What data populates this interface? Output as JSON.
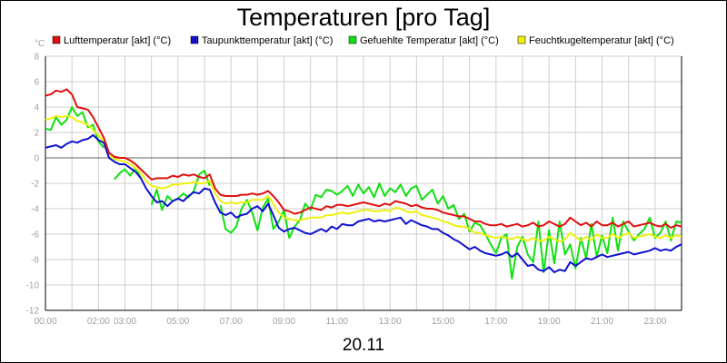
{
  "chart_data": {
    "type": "line",
    "title": "Temperaturen [pro Tag]",
    "y_unit": "°C",
    "xlabel": "20.11",
    "ylim": [
      -12,
      8
    ],
    "xlim": [
      0,
      24
    ],
    "yticks": [
      8,
      6,
      4,
      2,
      0,
      -2,
      -4,
      -6,
      -8,
      -10,
      -12
    ],
    "xticks": [
      {
        "h": 0,
        "label": "00:00"
      },
      {
        "h": 2,
        "label": "02:00"
      },
      {
        "h": 3,
        "label": "03:00"
      },
      {
        "h": 5,
        "label": "05:00"
      },
      {
        "h": 7,
        "label": "07:00"
      },
      {
        "h": 9,
        "label": "09:00"
      },
      {
        "h": 11,
        "label": "11:00"
      },
      {
        "h": 13,
        "label": "13:00"
      },
      {
        "h": 15,
        "label": "15:00"
      },
      {
        "h": 17,
        "label": "17:00"
      },
      {
        "h": 19,
        "label": "19:00"
      },
      {
        "h": 21,
        "label": "21:00"
      },
      {
        "h": 23,
        "label": "23:00"
      }
    ],
    "grid": true,
    "legend_position": "top",
    "series": [
      {
        "name": "Lufttemperatur [akt] (°C)",
        "color": "#e01010",
        "x": [
          0,
          0.2,
          0.4,
          0.6,
          0.8,
          1,
          1.2,
          1.4,
          1.6,
          1.8,
          2,
          2.2,
          2.4,
          2.6,
          2.8,
          3,
          3.2,
          3.4,
          3.6,
          3.8,
          4,
          4.2,
          4.4,
          4.6,
          4.8,
          5,
          5.2,
          5.4,
          5.6,
          5.8,
          6,
          6.2,
          6.4,
          6.6,
          6.8,
          7,
          7.2,
          7.4,
          7.6,
          7.8,
          8,
          8.2,
          8.4,
          8.6,
          8.8,
          9,
          9.2,
          9.4,
          9.6,
          9.8,
          10,
          10.2,
          10.4,
          10.6,
          10.8,
          11,
          11.2,
          11.4,
          11.6,
          11.8,
          12,
          12.2,
          12.4,
          12.6,
          12.8,
          13,
          13.2,
          13.4,
          13.6,
          13.8,
          14,
          14.2,
          14.4,
          14.6,
          14.8,
          15,
          15.2,
          15.4,
          15.6,
          15.8,
          16,
          16.2,
          16.4,
          16.6,
          16.8,
          17,
          17.2,
          17.4,
          17.6,
          17.8,
          18,
          18.2,
          18.4,
          18.6,
          18.8,
          19,
          19.2,
          19.4,
          19.6,
          19.8,
          20,
          20.2,
          20.4,
          20.6,
          20.8,
          21,
          21.2,
          21.4,
          21.6,
          21.8,
          22,
          22.2,
          22.4,
          22.6,
          22.8,
          23,
          23.2,
          23.4,
          23.6,
          23.8,
          24
        ],
        "y": [
          4.9,
          5.0,
          5.3,
          5.2,
          5.4,
          5.0,
          4.0,
          3.9,
          3.8,
          3.2,
          2.4,
          1.6,
          0.4,
          0.1,
          0.0,
          0.0,
          -0.2,
          -0.5,
          -0.9,
          -1.3,
          -1.7,
          -1.6,
          -1.6,
          -1.6,
          -1.4,
          -1.5,
          -1.3,
          -1.4,
          -1.3,
          -1.5,
          -1.6,
          -1.3,
          -2.4,
          -2.9,
          -3.0,
          -3.0,
          -3.0,
          -2.9,
          -2.9,
          -2.8,
          -2.9,
          -2.8,
          -2.6,
          -3.0,
          -3.5,
          -4.1,
          -4.2,
          -4.4,
          -4.3,
          -4.1,
          -3.9,
          -4.0,
          -4.1,
          -3.8,
          -3.9,
          -3.7,
          -3.7,
          -3.8,
          -3.7,
          -3.6,
          -3.5,
          -3.6,
          -3.7,
          -3.8,
          -3.6,
          -3.7,
          -3.4,
          -3.5,
          -3.6,
          -3.8,
          -3.7,
          -3.9,
          -4.0,
          -4.0,
          -4.1,
          -4.3,
          -4.4,
          -4.5,
          -4.6,
          -4.6,
          -4.8,
          -5.0,
          -5.0,
          -5.2,
          -5.3,
          -5.3,
          -5.2,
          -5.4,
          -5.3,
          -5.2,
          -5.4,
          -5.3,
          -5.1,
          -5.4,
          -5.3,
          -5.0,
          -5.2,
          -5.4,
          -5.2,
          -4.7,
          -5.0,
          -5.3,
          -5.1,
          -5.4,
          -5.0,
          -5.3,
          -5.3,
          -5.1,
          -5.4,
          -5.2,
          -5.0,
          -5.4,
          -5.3,
          -5.2,
          -5.1,
          -5.3,
          -5.4,
          -5.2,
          -5.5,
          -5.3,
          -5.4
        ]
      },
      {
        "name": "Taupunkttemperatur [akt] (°C)",
        "color": "#1010d0",
        "x": [
          0,
          0.2,
          0.4,
          0.6,
          0.8,
          1,
          1.2,
          1.4,
          1.6,
          1.8,
          2,
          2.2,
          2.4,
          2.6,
          2.8,
          3,
          3.2,
          3.4,
          3.6,
          3.8,
          4,
          4.2,
          4.4,
          4.6,
          4.8,
          5,
          5.2,
          5.4,
          5.6,
          5.8,
          6,
          6.2,
          6.4,
          6.6,
          6.8,
          7,
          7.2,
          7.4,
          7.6,
          7.8,
          8,
          8.2,
          8.4,
          8.6,
          8.8,
          9,
          9.2,
          9.4,
          9.6,
          9.8,
          10,
          10.2,
          10.4,
          10.6,
          10.8,
          11,
          11.2,
          11.4,
          11.6,
          11.8,
          12,
          12.2,
          12.4,
          12.6,
          12.8,
          13,
          13.2,
          13.4,
          13.6,
          13.8,
          14,
          14.2,
          14.4,
          14.6,
          14.8,
          15,
          15.2,
          15.4,
          15.6,
          15.8,
          16,
          16.2,
          16.4,
          16.6,
          16.8,
          17,
          17.2,
          17.4,
          17.6,
          17.8,
          18,
          18.2,
          18.4,
          18.6,
          18.8,
          19,
          19.2,
          19.4,
          19.6,
          19.8,
          20,
          20.2,
          20.4,
          20.6,
          20.8,
          21,
          21.2,
          21.4,
          21.6,
          21.8,
          22,
          22.2,
          22.4,
          22.6,
          22.8,
          23,
          23.2,
          23.4,
          23.6,
          23.8,
          24
        ],
        "y": [
          0.8,
          0.9,
          1.0,
          0.8,
          1.1,
          1.3,
          1.2,
          1.4,
          1.5,
          1.8,
          1.4,
          1.2,
          0.0,
          -0.3,
          -0.5,
          -0.5,
          -0.8,
          -1.1,
          -1.6,
          -2.4,
          -3.0,
          -3.5,
          -3.4,
          -3.8,
          -3.4,
          -3.2,
          -3.4,
          -3.0,
          -2.7,
          -2.8,
          -2.4,
          -2.5,
          -3.5,
          -4.3,
          -4.5,
          -4.3,
          -4.7,
          -4.5,
          -4.4,
          -4.0,
          -3.8,
          -4.2,
          -3.6,
          -4.5,
          -5.5,
          -5.8,
          -5.6,
          -5.5,
          -5.7,
          -5.9,
          -6.0,
          -5.8,
          -5.6,
          -5.8,
          -5.4,
          -5.6,
          -5.2,
          -5.3,
          -5.3,
          -5.0,
          -4.9,
          -4.8,
          -5.0,
          -4.9,
          -5.0,
          -4.9,
          -4.8,
          -4.7,
          -5.2,
          -4.9,
          -5.1,
          -5.3,
          -5.4,
          -5.6,
          -5.6,
          -5.9,
          -6.1,
          -6.4,
          -6.6,
          -6.9,
          -7.2,
          -7.0,
          -7.3,
          -7.5,
          -7.6,
          -7.7,
          -7.6,
          -7.4,
          -7.8,
          -7.5,
          -8.0,
          -8.5,
          -8.4,
          -8.8,
          -8.9,
          -8.6,
          -9.0,
          -8.8,
          -8.9,
          -8.2,
          -8.5,
          -8.2,
          -7.9,
          -8.0,
          -7.8,
          -7.6,
          -7.8,
          -7.7,
          -7.6,
          -7.5,
          -7.4,
          -7.6,
          -7.5,
          -7.4,
          -7.3,
          -7.1,
          -7.3,
          -7.2,
          -7.3,
          -7.0,
          -6.8
        ]
      },
      {
        "name": "Gefuehlte Temperatur [akt] (°C)",
        "color": "#10e010",
        "x": [
          0,
          0.2,
          0.4,
          0.6,
          0.8,
          1,
          1.2,
          1.4,
          1.6,
          1.8,
          2,
          2.2,
          2.4,
          2.6,
          2.8,
          3,
          3.2,
          3.4,
          3.6,
          3.8,
          4,
          4.2,
          4.4,
          4.6,
          4.8,
          5,
          5.2,
          5.4,
          5.6,
          5.8,
          6,
          6.2,
          6.4,
          6.6,
          6.8,
          7,
          7.2,
          7.4,
          7.6,
          7.8,
          8,
          8.2,
          8.4,
          8.6,
          8.8,
          9,
          9.2,
          9.4,
          9.6,
          9.8,
          10,
          10.2,
          10.4,
          10.6,
          10.8,
          11,
          11.2,
          11.4,
          11.6,
          11.8,
          12,
          12.2,
          12.4,
          12.6,
          12.8,
          13,
          13.2,
          13.4,
          13.6,
          13.8,
          14,
          14.2,
          14.4,
          14.6,
          14.8,
          15,
          15.2,
          15.4,
          15.6,
          15.8,
          16,
          16.2,
          16.4,
          16.6,
          16.8,
          17,
          17.2,
          17.4,
          17.6,
          17.8,
          18,
          18.2,
          18.4,
          18.6,
          18.8,
          19,
          19.2,
          19.4,
          19.6,
          19.8,
          20,
          20.2,
          20.4,
          20.6,
          20.8,
          21,
          21.2,
          21.4,
          21.6,
          21.8,
          22,
          22.2,
          22.4,
          22.6,
          22.8,
          23,
          23.2,
          23.4,
          23.6,
          23.8,
          24
        ],
        "y": [
          2.3,
          2.2,
          3.2,
          2.6,
          3.0,
          4.0,
          3.3,
          3.6,
          2.4,
          2.6,
          1.3,
          0.8,
          null,
          -1.7,
          -1.2,
          -0.9,
          -1.4,
          -0.8,
          -1.6,
          null,
          -3.7,
          -2.5,
          -4.1,
          -3.0,
          -3.4,
          -3.2,
          -2.8,
          -3.1,
          -2.6,
          -1.3,
          -1.0,
          -2.2,
          null,
          -3.7,
          -5.6,
          -5.9,
          -5.4,
          -4.0,
          -3.3,
          -4.3,
          -5.7,
          -3.9,
          -3.2,
          -5.6,
          -5.0,
          -4.1,
          -6.3,
          -5.4,
          -4.9,
          -3.6,
          -4.1,
          -2.9,
          -3.1,
          -2.5,
          -2.6,
          -2.9,
          -2.6,
          -2.2,
          -3.0,
          -2.1,
          -2.8,
          -2.3,
          -3.1,
          -2.0,
          -3.0,
          -2.4,
          -2.7,
          -2.1,
          -3.0,
          -2.4,
          -2.2,
          -3.3,
          -2.9,
          -2.5,
          -3.6,
          -3.0,
          -4.0,
          -3.7,
          -4.8,
          -4.4,
          -5.8,
          -5.1,
          -5.3,
          -6.0,
          -6.8,
          -7.5,
          -6.3,
          -6.0,
          -9.5,
          -7.0,
          -6.2,
          -7.6,
          -8.2,
          -5.0,
          -9.0,
          -5.7,
          -8.3,
          -5.0,
          -7.6,
          -6.8,
          -8.7,
          -6.3,
          -7.9,
          -5.2,
          -7.8,
          -6.1,
          -7.5,
          -4.7,
          -7.3,
          -5.0,
          -5.8,
          -6.5,
          -6.0,
          -5.6,
          -4.7,
          -6.3,
          -5.9,
          -5.0,
          -6.5,
          -5.0,
          -5.1
        ]
      },
      {
        "name": "Feuchtkugeltemperatur [akt] (°C)",
        "color": "#f0f010",
        "x": [
          0,
          0.2,
          0.4,
          0.6,
          0.8,
          1,
          1.2,
          1.4,
          1.6,
          1.8,
          2,
          2.2,
          2.4,
          2.6,
          2.8,
          3,
          3.2,
          3.4,
          3.6,
          3.8,
          4,
          4.2,
          4.4,
          4.6,
          4.8,
          5,
          5.2,
          5.4,
          5.6,
          5.8,
          6,
          6.2,
          6.4,
          6.6,
          6.8,
          7,
          7.2,
          7.4,
          7.6,
          7.8,
          8,
          8.2,
          8.4,
          8.6,
          8.8,
          9,
          9.2,
          9.4,
          9.6,
          9.8,
          10,
          10.2,
          10.4,
          10.6,
          10.8,
          11,
          11.2,
          11.4,
          11.6,
          11.8,
          12,
          12.2,
          12.4,
          12.6,
          12.8,
          13,
          13.2,
          13.4,
          13.6,
          13.8,
          14,
          14.2,
          14.4,
          14.6,
          14.8,
          15,
          15.2,
          15.4,
          15.6,
          15.8,
          16,
          16.2,
          16.4,
          16.6,
          16.8,
          17,
          17.2,
          17.4,
          17.6,
          17.8,
          18,
          18.2,
          18.4,
          18.6,
          18.8,
          19,
          19.2,
          19.4,
          19.6,
          19.8,
          20,
          20.2,
          20.4,
          20.6,
          20.8,
          21,
          21.2,
          21.4,
          21.6,
          21.8,
          22,
          22.2,
          22.4,
          22.6,
          22.8,
          23,
          23.2,
          23.4,
          23.6,
          23.8,
          24
        ],
        "y": [
          3.0,
          3.1,
          3.3,
          3.2,
          3.3,
          3.2,
          2.9,
          2.8,
          2.6,
          2.2,
          1.8,
          1.3,
          0.2,
          -0.1,
          -0.2,
          -0.3,
          -0.5,
          -0.8,
          -1.2,
          -1.8,
          -2.2,
          -2.3,
          -2.4,
          -2.3,
          -2.1,
          -2.1,
          -2.0,
          -2.0,
          -1.9,
          -2.0,
          -2.0,
          -1.8,
          -2.8,
          -3.4,
          -3.6,
          -3.5,
          -3.6,
          -3.5,
          -3.5,
          -3.3,
          -3.3,
          -3.3,
          -3.0,
          -3.6,
          -4.3,
          -4.7,
          -4.8,
          -4.9,
          -4.9,
          -4.8,
          -4.7,
          -4.7,
          -4.7,
          -4.5,
          -4.5,
          -4.4,
          -4.3,
          -4.4,
          -4.3,
          -4.2,
          -4.1,
          -4.1,
          -4.2,
          -4.2,
          -4.1,
          -4.2,
          -3.9,
          -4.0,
          -4.2,
          -4.3,
          -4.2,
          -4.5,
          -4.6,
          -4.7,
          -4.8,
          -5.0,
          -5.1,
          -5.3,
          -5.4,
          -5.4,
          -5.6,
          -5.9,
          -5.9,
          -6.1,
          -6.2,
          -6.3,
          -6.2,
          -6.3,
          -6.4,
          -6.2,
          -6.4,
          -6.5,
          -6.3,
          -6.5,
          -6.5,
          -6.2,
          -6.4,
          -6.6,
          -6.4,
          -5.9,
          -6.2,
          -6.5,
          -6.2,
          -6.5,
          -6.0,
          -6.3,
          -6.3,
          -6.0,
          -6.3,
          -6.1,
          -5.9,
          -6.3,
          -6.2,
          -6.1,
          -6.0,
          -6.2,
          -6.3,
          -6.1,
          -6.3,
          -6.1,
          -6.2
        ]
      }
    ]
  }
}
